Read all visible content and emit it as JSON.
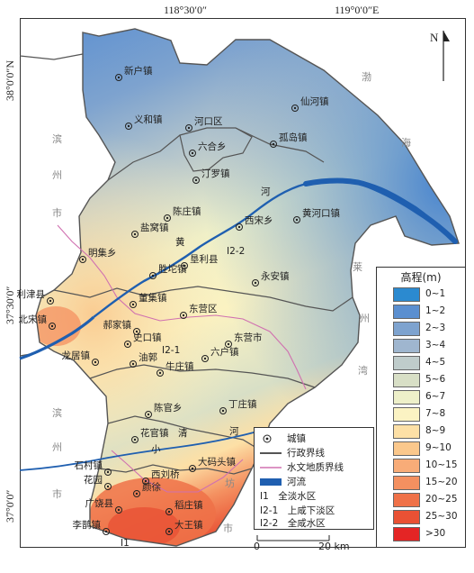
{
  "coords": {
    "top": [
      "118°30′0″",
      "119°0′0″E"
    ],
    "left": [
      "38°0′0″N",
      "37°30′0″",
      "37°0′0″"
    ]
  },
  "north_label": "N",
  "sea_labels": {
    "bohai": "渤",
    "hai": "海",
    "lai": "莱",
    "zhou": "州",
    "wan": "湾",
    "wei": "潍",
    "fang": "坊",
    "shi": "市",
    "bin1": "滨",
    "zhou1": "州",
    "shi1": "市",
    "bin2": "滨",
    "zhou2": "州",
    "shi2": "市",
    "huang": "黄",
    "he": "河",
    "xiao": "小",
    "qing": "清",
    "he2": "河"
  },
  "towns": {
    "xinhu": "新户镇",
    "yihe": "义和镇",
    "hekou": "河口区",
    "xianhe": "仙河镇",
    "liuhe": "六合乡",
    "gudao": "孤岛镇",
    "diluo": "汀罗镇",
    "chenzhuang": "陈庄镇",
    "huanghekou": "黄河口镇",
    "xisong": "西宋乡",
    "yanwo": "盐窝镇",
    "mingji": "明集乡",
    "kenli": "垦利县",
    "yongan": "永安镇",
    "shengtuo": "胜坨镇",
    "lijin": "利津县",
    "beisong": "北宋镇",
    "dongji": "董集镇",
    "dongying": "东营区",
    "haojia": "郝家镇",
    "dongyingshi": "东营市",
    "shikou": "史口镇",
    "longju": "龙居镇",
    "youguo": "油郭",
    "liuhu": "六户镇",
    "niuzhuang": "牛庄镇",
    "chenguan": "陈官乡",
    "dingzhuang": "丁庄镇",
    "huaguan": "花官镇",
    "shicun": "石村镇",
    "xiliu": "西刘桥",
    "damatou": "大码头镇",
    "huayuan": "花园",
    "dunxu": "颜徐",
    "guangrao": "广饶县",
    "daozhuang": "稻庄镇",
    "lijun": "李鹊镇",
    "dawang": "大王镇",
    "i2_1": "I2-1",
    "i2_2": "I2-2",
    "i1": "I1"
  },
  "legend": {
    "title": "高程(m)",
    "items": [
      {
        "label": "0~1",
        "color": "#2b8ad0"
      },
      {
        "label": "1~2",
        "color": "#5b8fd0"
      },
      {
        "label": "2~3",
        "color": "#7ea3cf"
      },
      {
        "label": "3~4",
        "color": "#9fb6cf"
      },
      {
        "label": "4~5",
        "color": "#bfcccb"
      },
      {
        "label": "5~6",
        "color": "#d8dfc6"
      },
      {
        "label": "6~7",
        "color": "#eef0c9"
      },
      {
        "label": "7~8",
        "color": "#fbf3c3"
      },
      {
        "label": "8~9",
        "color": "#fde0a6"
      },
      {
        "label": "9~10",
        "color": "#fbc88c"
      },
      {
        "label": "10~15",
        "color": "#f8ac78"
      },
      {
        "label": "15~20",
        "color": "#f49060"
      },
      {
        "label": "20~25",
        "color": "#ef7148"
      },
      {
        "label": "25~30",
        "color": "#e95134"
      },
      {
        ">30": "",
        "label": ">30",
        "color": "#e42525"
      }
    ]
  },
  "key": {
    "town": "城镇",
    "admin": "行政界线",
    "hydro": "水文地质界线",
    "river": "河流",
    "i1": "I1　全淡水区",
    "i2_1": "I2-1　上咸下淡区",
    "i2_2": "I2-2　全咸水区"
  },
  "scale": {
    "zero": "0",
    "end": "20 km"
  },
  "colors": {
    "admin_line": "#555555",
    "hydro_line": "#d070b0",
    "river": "#1f5fb0",
    "frame": "#333333"
  }
}
